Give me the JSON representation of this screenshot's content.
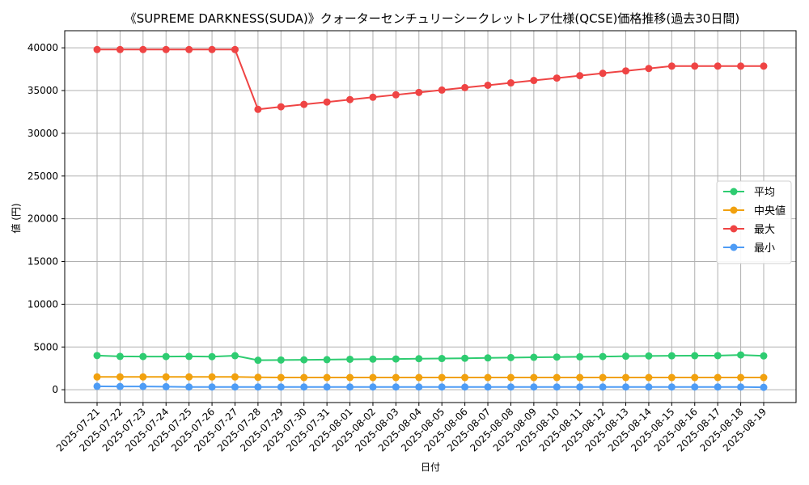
{
  "chart_data": {
    "type": "line",
    "title": "《SUPREME DARKNESS(SUDA)》クォーターセンチュリーシークレットレア仕様(QCSE)価格推移(過去30日間)",
    "xlabel": "日付",
    "ylabel": "値 (円)",
    "ylim": [
      -1500,
      42000
    ],
    "yticks": [
      0,
      5000,
      10000,
      15000,
      20000,
      25000,
      30000,
      35000,
      40000
    ],
    "grid": true,
    "legend_position": "center-right",
    "categories": [
      "2025-07-21",
      "2025-07-22",
      "2025-07-23",
      "2025-07-24",
      "2025-07-25",
      "2025-07-26",
      "2025-07-27",
      "2025-07-28",
      "2025-07-29",
      "2025-07-30",
      "2025-07-31",
      "2025-08-01",
      "2025-08-02",
      "2025-08-03",
      "2025-08-04",
      "2025-08-05",
      "2025-08-06",
      "2025-08-07",
      "2025-08-08",
      "2025-08-09",
      "2025-08-10",
      "2025-08-11",
      "2025-08-12",
      "2025-08-13",
      "2025-08-14",
      "2025-08-15",
      "2025-08-16",
      "2025-08-17",
      "2025-08-18",
      "2025-08-19"
    ],
    "series": [
      {
        "name": "平均",
        "color": "#2ecc71",
        "values": [
          4000,
          3900,
          3880,
          3880,
          3900,
          3870,
          3980,
          3450,
          3480,
          3500,
          3520,
          3560,
          3580,
          3600,
          3630,
          3650,
          3680,
          3720,
          3760,
          3790,
          3820,
          3850,
          3880,
          3920,
          3950,
          3970,
          3980,
          3990,
          4070,
          3960
        ]
      },
      {
        "name": "中央値",
        "color": "#f1a10f",
        "values": [
          1500,
          1500,
          1500,
          1500,
          1500,
          1500,
          1500,
          1450,
          1430,
          1430,
          1430,
          1430,
          1430,
          1430,
          1430,
          1430,
          1430,
          1430,
          1430,
          1430,
          1430,
          1430,
          1430,
          1430,
          1430,
          1430,
          1430,
          1430,
          1430,
          1430
        ]
      },
      {
        "name": "最大",
        "color": "#ef4444",
        "values": [
          39800,
          39800,
          39800,
          39800,
          39800,
          39800,
          39800,
          32800,
          33100,
          33380,
          33660,
          33940,
          34220,
          34500,
          34780,
          35060,
          35340,
          35620,
          35900,
          36180,
          36460,
          36740,
          37020,
          37300,
          37580,
          37860,
          37860,
          37860,
          37860,
          37860
        ]
      },
      {
        "name": "最小",
        "color": "#4e9cf5",
        "values": [
          400,
          380,
          380,
          350,
          320,
          320,
          320,
          320,
          320,
          320,
          320,
          320,
          320,
          320,
          320,
          320,
          320,
          320,
          320,
          320,
          320,
          320,
          320,
          320,
          320,
          320,
          320,
          320,
          320,
          280
        ]
      }
    ]
  }
}
